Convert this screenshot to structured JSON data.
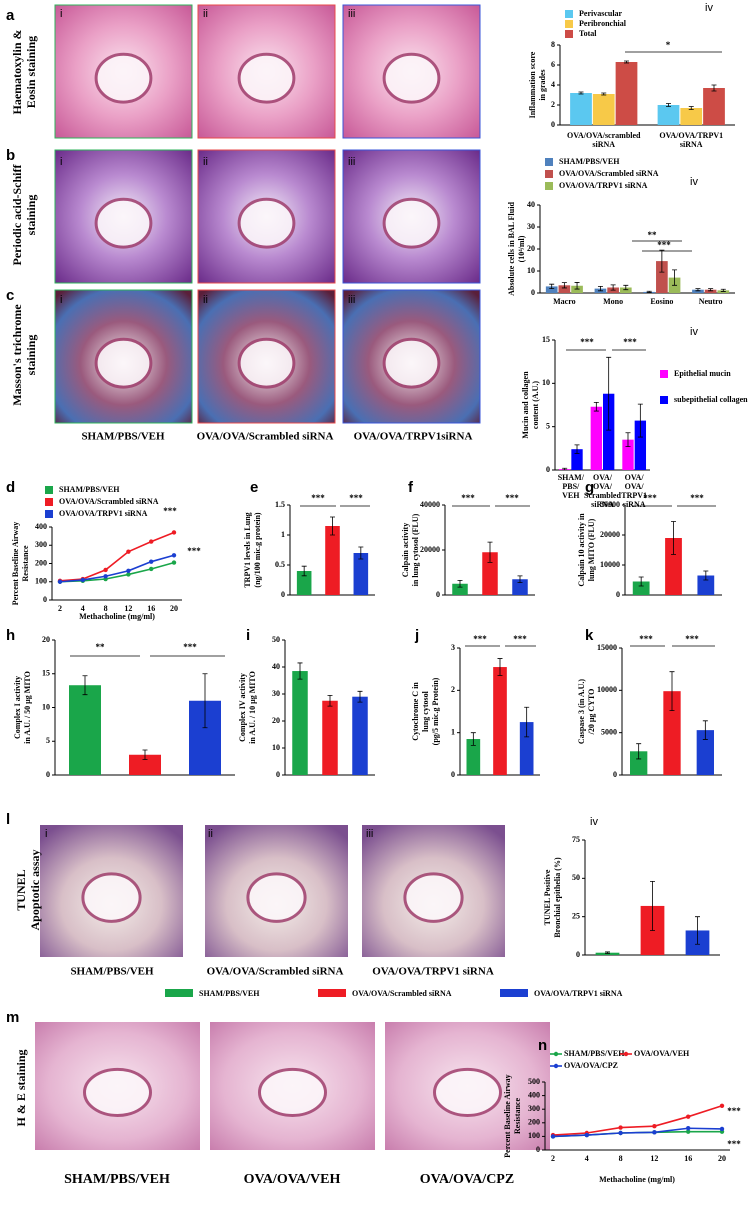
{
  "panel_labels": [
    "a",
    "b",
    "c",
    "d",
    "e",
    "f",
    "g",
    "h",
    "i",
    "j",
    "k",
    "l",
    "m",
    "n"
  ],
  "row_labels": {
    "a": [
      "Haematoxylin &",
      "Eosin staining"
    ],
    "b": [
      "Periodic acid-Schiff",
      "staining"
    ],
    "c": [
      "Masson's trichrome",
      "staining"
    ],
    "l": [
      "TUNEL",
      "Apoptotic assay"
    ],
    "m": [
      "H & E staining"
    ]
  },
  "sub_labels": [
    "i",
    "ii",
    "iii",
    "iv"
  ],
  "captions_c": [
    "SHAM/PBS/VEH",
    "OVA/OVA/Scrambled siRNA",
    "OVA/OVA/TRPV1siRNA"
  ],
  "captions_l": [
    "SHAM/PBS/VEH",
    "OVA/OVA/Scrambled siRNA",
    "OVA/OVA/TRPV1 siRNA"
  ],
  "captions_m": [
    "SHAM/PBS/VEH",
    "OVA/OVA/VEH",
    "OVA/OVA/CPZ"
  ],
  "legend": [
    {
      "name": "SHAM/PBS/VEH",
      "color": "#1aa64a"
    },
    {
      "name": "OVA/OVA/Scrambled siRNA",
      "color": "#ee1c24"
    },
    {
      "name": "OVA/OVA/TRPV1 siRNA",
      "color": "#1b3fd1"
    }
  ],
  "chart_data": [
    {
      "type": "bar",
      "ylabel": [
        "Inflammation score",
        "in grades"
      ],
      "categories": [
        [
          "OVA/OVA/scrambled",
          "siRNA"
        ],
        [
          "OVA/OVA/TRPV1",
          "siRNA"
        ]
      ],
      "series": [
        {
          "name": "Perivascular",
          "color": "#5bc8f0",
          "values": [
            3.2,
            2.0
          ],
          "errors": [
            0.1,
            0.15
          ]
        },
        {
          "name": "Peribronchial",
          "color": "#f7c948",
          "values": [
            3.1,
            1.7
          ],
          "errors": [
            0.1,
            0.15
          ]
        },
        {
          "name": "Total",
          "color": "#cd4c46",
          "values": [
            6.3,
            3.7
          ],
          "errors": [
            0.1,
            0.3
          ]
        }
      ],
      "ylim": [
        0,
        8
      ],
      "yticks": [
        0,
        2,
        4,
        6,
        8
      ],
      "annotations": [
        "*"
      ]
    },
    {
      "type": "bar",
      "ylabel": [
        "Absolute cells in BAL Fluid",
        "(10⁴/ml)"
      ],
      "categories": [
        "Macro",
        "Mono",
        "Eosino",
        "Neutro"
      ],
      "series": [
        {
          "name": "SHAM/PBS/VEH",
          "color": "#4f81bd",
          "values": [
            3,
            2,
            0.5,
            1.5
          ],
          "errors": [
            1,
            1,
            0.3,
            0.5
          ]
        },
        {
          "name": "OVA/OVA/Scrambled siRNA",
          "color": "#c0504d",
          "values": [
            3.5,
            2.5,
            14.5,
            1.5
          ],
          "errors": [
            1.2,
            1.2,
            5,
            0.5
          ]
        },
        {
          "name": "OVA/OVA/TRPV1 siRNA",
          "color": "#9bbb59",
          "values": [
            3.3,
            2.5,
            7,
            1.2
          ],
          "errors": [
            1.5,
            1,
            3.5,
            0.5
          ]
        }
      ],
      "ylim": [
        0,
        40
      ],
      "yticks": [
        0,
        10,
        20,
        30,
        40
      ],
      "annotations": [
        "**",
        "***"
      ]
    },
    {
      "type": "bar",
      "ylabel": [
        "Mucin and collagen",
        "content (A.U.)"
      ],
      "categories": [
        [
          "SHAM/",
          "PBS/",
          "VEH"
        ],
        [
          "OVA/",
          "OVA/",
          "Scrambled",
          "siRNA"
        ],
        [
          "OVA/",
          "OVA/",
          "TRPV1",
          "siRNA"
        ]
      ],
      "series": [
        {
          "name": "Epithelial mucin",
          "color": "#ff00ff",
          "values": [
            0.1,
            7.3,
            3.5
          ],
          "errors": [
            0.1,
            0.5,
            0.8
          ]
        },
        {
          "name": "subepithelial collagen",
          "color": "#0000ff",
          "values": [
            2.4,
            8.8,
            5.7
          ],
          "errors": [
            0.5,
            4.2,
            1.9
          ]
        }
      ],
      "ylim": [
        0,
        15
      ],
      "yticks": [
        0,
        5,
        10,
        15
      ],
      "annotations": [
        "***",
        "***"
      ]
    },
    {
      "type": "line",
      "ylabel": [
        "Percent Baseline Airway",
        "Resistance"
      ],
      "xlabel": "Methacholine (mg/ml)",
      "categories": [
        2,
        4,
        8,
        12,
        16,
        20
      ],
      "series": [
        {
          "name": "SHAM/PBS/VEH",
          "color": "#1aa64a",
          "values": [
            100,
            105,
            115,
            140,
            170,
            205
          ]
        },
        {
          "name": "OVA/OVA/Scrambled siRNA",
          "color": "#ee1c24",
          "values": [
            105,
            115,
            165,
            265,
            320,
            370
          ]
        },
        {
          "name": "OVA/OVA/TRPV1 siRNA",
          "color": "#1b3fd1",
          "values": [
            100,
            110,
            130,
            160,
            210,
            245
          ]
        }
      ],
      "ylim": [
        0,
        400
      ],
      "yticks": [
        0,
        100,
        200,
        300,
        400
      ],
      "annotations": [
        "***",
        "***"
      ]
    },
    {
      "type": "bar",
      "ylabel": [
        "TRPV1 levels in Lung",
        "(ng/100 mic.g protein)"
      ],
      "categories": [
        null,
        null,
        null
      ],
      "values": [
        0.4,
        1.15,
        0.7
      ],
      "errors": [
        0.08,
        0.15,
        0.1
      ],
      "colors": [
        "#1aa64a",
        "#ee1c24",
        "#1b3fd1"
      ],
      "ylim": [
        0,
        1.5
      ],
      "yticks": [
        0,
        0.5,
        1,
        1.5
      ],
      "annotations": [
        "***",
        "***"
      ]
    },
    {
      "type": "bar",
      "ylabel": [
        "Calpain activity",
        "in lung cytosol (FLU)"
      ],
      "categories": [
        null,
        null,
        null
      ],
      "values": [
        5000,
        19000,
        7000
      ],
      "errors": [
        1500,
        4500,
        1500
      ],
      "colors": [
        "#1aa64a",
        "#ee1c24",
        "#1b3fd1"
      ],
      "ylim": [
        0,
        40000
      ],
      "yticks": [
        0,
        20000,
        40000
      ],
      "annotations": [
        "***",
        "***"
      ]
    },
    {
      "type": "bar",
      "ylabel": [
        "Calpain 10 activity in",
        "lung MITO (FLU)"
      ],
      "categories": [
        null,
        null,
        null
      ],
      "values": [
        4500,
        19000,
        6500
      ],
      "errors": [
        1500,
        5500,
        1500
      ],
      "colors": [
        "#1aa64a",
        "#ee1c24",
        "#1b3fd1"
      ],
      "ylim": [
        0,
        30000
      ],
      "yticks": [
        0,
        10000,
        20000,
        30000
      ],
      "annotations": [
        "***",
        "***"
      ]
    },
    {
      "type": "bar",
      "ylabel": [
        "Complex I activity",
        "in A.U. / 50 µg MITO"
      ],
      "categories": [
        null,
        null,
        null
      ],
      "values": [
        13.3,
        3,
        11
      ],
      "errors": [
        1.4,
        0.7,
        4
      ],
      "colors": [
        "#1aa64a",
        "#ee1c24",
        "#1b3fd1"
      ],
      "ylim": [
        0,
        20
      ],
      "yticks": [
        0,
        5,
        10,
        15,
        20
      ],
      "annotations": [
        "**",
        "***"
      ]
    },
    {
      "type": "bar",
      "ylabel": [
        "Complex IV activity",
        "in A.U. / 10 µg MITO"
      ],
      "categories": [
        null,
        null,
        null
      ],
      "values": [
        38.5,
        27.5,
        29
      ],
      "errors": [
        3,
        2,
        2
      ],
      "colors": [
        "#1aa64a",
        "#ee1c24",
        "#1b3fd1"
      ],
      "ylim": [
        0,
        50
      ],
      "yticks": [
        0,
        10,
        20,
        30,
        40,
        50
      ]
    },
    {
      "type": "bar",
      "ylabel": [
        "Cytochrome C in",
        "lung cytosol",
        "(pg/5 mic.g Protein)"
      ],
      "categories": [
        null,
        null,
        null
      ],
      "values": [
        0.85,
        2.55,
        1.25
      ],
      "errors": [
        0.15,
        0.2,
        0.35
      ],
      "colors": [
        "#1aa64a",
        "#ee1c24",
        "#1b3fd1"
      ],
      "ylim": [
        0,
        3
      ],
      "yticks": [
        0,
        1,
        2,
        3
      ],
      "annotations": [
        "***",
        "***"
      ]
    },
    {
      "type": "bar",
      "ylabel": [
        "Caspase 3 (in A.U.)",
        "/20 µg CYTO"
      ],
      "categories": [
        null,
        null,
        null
      ],
      "values": [
        2800,
        9900,
        5300
      ],
      "errors": [
        900,
        2300,
        1100
      ],
      "colors": [
        "#1aa64a",
        "#ee1c24",
        "#1b3fd1"
      ],
      "ylim": [
        0,
        15000
      ],
      "yticks": [
        0,
        5000,
        10000,
        15000
      ],
      "annotations": [
        "***",
        "***"
      ]
    },
    {
      "type": "bar",
      "ylabel": [
        "TUNEL Positive",
        "Bronchial epithelia (%)"
      ],
      "categories": [
        null,
        null,
        null
      ],
      "values": [
        1.5,
        32,
        16
      ],
      "errors": [
        0.5,
        16,
        9
      ],
      "colors": [
        "#1aa64a",
        "#ee1c24",
        "#1b3fd1"
      ],
      "ylim": [
        0,
        75
      ],
      "yticks": [
        0,
        25,
        50,
        75
      ]
    },
    {
      "type": "line",
      "ylabel": [
        "Percent Baseline Airway",
        "Resistance"
      ],
      "xlabel": "Methacholine (mg/ml)",
      "categories": [
        2,
        4,
        8,
        12,
        16,
        20
      ],
      "series": [
        {
          "name": "SHAM/PBS/VEH",
          "color": "#1aa64a",
          "values": [
            100,
            110,
            125,
            130,
            135,
            135
          ]
        },
        {
          "name": "OVA/OVA/VEH",
          "color": "#ee1c24",
          "values": [
            110,
            125,
            165,
            175,
            245,
            325
          ]
        },
        {
          "name": "OVA/OVA/CPZ",
          "color": "#1b3fd1",
          "values": [
            100,
            110,
            125,
            130,
            160,
            155
          ]
        }
      ],
      "ylim": [
        0,
        500
      ],
      "yticks": [
        0,
        100,
        200,
        300,
        400,
        500
      ],
      "annotations": [
        "***",
        "***"
      ]
    }
  ]
}
